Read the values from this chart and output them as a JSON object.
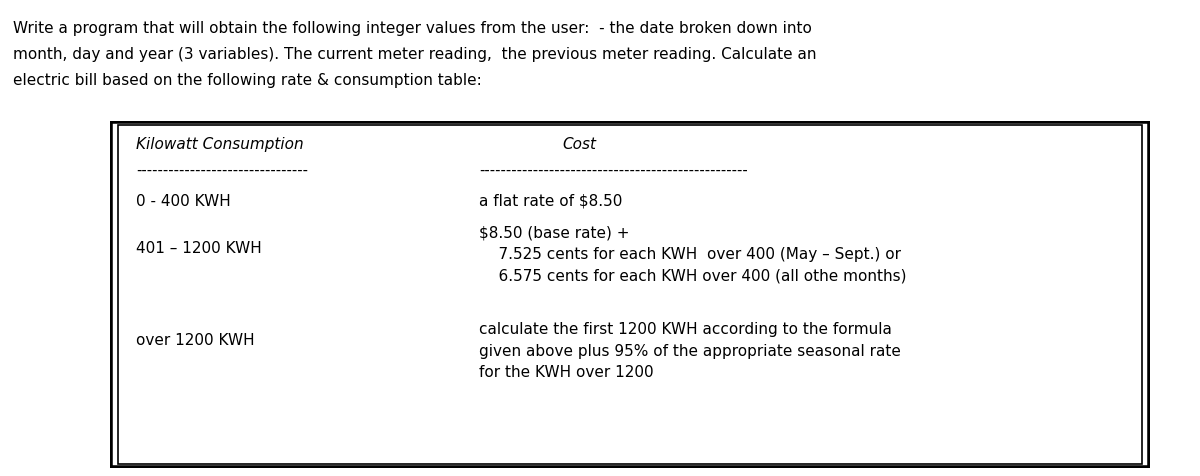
{
  "header_line1": "Write a program that will obtain the following integer values from the user:  - the date broken down into",
  "header_line2": "month, day and year (3 variables). The current meter reading,  the previous meter reading. Calculate an",
  "header_line3": "electric bill based on the following rate & consumption table:",
  "col1_header": "Kilowatt Consumption",
  "col2_header": "Cost",
  "dashes1": "--------------------------------",
  "dashes2": "--------------------------------------------------",
  "row1_col1": "0 - 400 KWH",
  "row1_col2": "a flat rate of $8.50",
  "row2_col1": "401 – 1200 KWH",
  "row2_col2_line1": "$8.50 (base rate) +",
  "row2_col2_line2": "    7.525 cents for each KWH  over 400 (May – Sept.) or",
  "row2_col2_line3": "    6.575 cents for each KWH over 400 (all othe months)",
  "row3_col1": "over 1200 KWH",
  "row3_col2_line1": "calculate the first 1200 KWH according to the formula",
  "row3_col2_line2": "given above plus 95% of the appropriate seasonal rate",
  "row3_col2_line3": "for the KWH over 1200",
  "bg_color": "#ffffff",
  "text_color": "#000000",
  "font_size": 11.0
}
